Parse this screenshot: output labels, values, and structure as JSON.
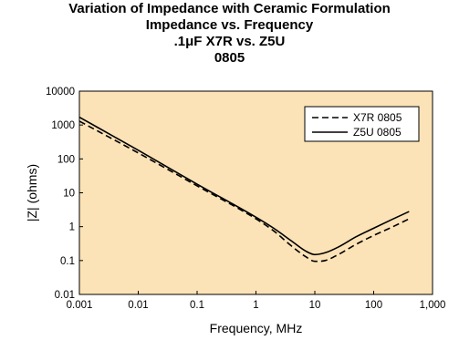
{
  "chart_data": {
    "type": "line",
    "title_lines": [
      "Variation of Impedance with Ceramic Formulation",
      "Impedance vs. Frequency",
      ".1μF X7R vs. Z5U",
      "0805"
    ],
    "xlabel": "Frequency, MHz",
    "ylabel": "|Z| (ohms)",
    "x_scale": "log",
    "y_scale": "log",
    "xlim": [
      0.001,
      1000
    ],
    "ylim": [
      0.01,
      10000
    ],
    "x_ticks": [
      "0.001",
      "0.01",
      "0.1",
      "1",
      "10",
      "100",
      "1,000"
    ],
    "y_ticks": [
      "0.01",
      "0.1",
      "1",
      "10",
      "100",
      "1000",
      "10000"
    ],
    "grid": false,
    "legend_position": "top-right",
    "plot_background": "#fbe3b7",
    "series": [
      {
        "name": "X7R 0805",
        "style": "dashed",
        "color": "#000000",
        "x": [
          0.001,
          0.01,
          0.1,
          1,
          2,
          4,
          7,
          10,
          15,
          25,
          50,
          100,
          200,
          400
        ],
        "y": [
          1300,
          150,
          16,
          1.7,
          0.75,
          0.27,
          0.13,
          0.095,
          0.1,
          0.15,
          0.3,
          0.55,
          0.95,
          1.7
        ]
      },
      {
        "name": "Z5U 0805",
        "style": "solid",
        "color": "#000000",
        "x": [
          0.001,
          0.01,
          0.1,
          1,
          2,
          4,
          7,
          10,
          15,
          25,
          50,
          100,
          200,
          400
        ],
        "y": [
          1700,
          180,
          18,
          1.9,
          0.9,
          0.38,
          0.19,
          0.15,
          0.17,
          0.25,
          0.5,
          0.9,
          1.6,
          2.8
        ]
      }
    ]
  }
}
